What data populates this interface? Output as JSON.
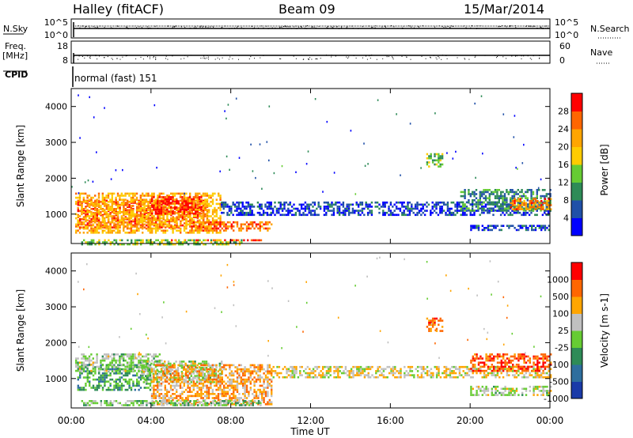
{
  "header": {
    "station": "Halley (fitACF)",
    "beam": "Beam 09",
    "date": "15/Mar/2014"
  },
  "nsky_panel": {
    "left_label": "N.Sky",
    "right_label": "N.Search",
    "left_ticks": [
      "10^5",
      "10^0"
    ],
    "right_ticks": [
      "10^5",
      "10^0"
    ]
  },
  "freq_panel": {
    "left_label_line1": "Freq.",
    "left_label_line2": "[MHz]",
    "right_label": "Nave",
    "left_ticks": [
      "18",
      "8"
    ],
    "right_ticks": [
      "60",
      "0"
    ]
  },
  "cpid": {
    "label": "CPID",
    "value": "normal (fast) 151"
  },
  "x_axis": {
    "label": "Time UT",
    "ticks": [
      "00:00",
      "04:00",
      "08:00",
      "12:00",
      "16:00",
      "20:00",
      "00:00"
    ]
  },
  "chart_data": [
    {
      "type": "heatmap",
      "name": "power",
      "ylabel": "Slant Range [km]",
      "yticks": [
        "1000",
        "2000",
        "3000",
        "4000"
      ],
      "ylim": [
        180,
        4500
      ],
      "xlim_hours": [
        0,
        24
      ],
      "colorbar": {
        "label": "Power [dB]",
        "ticks": [
          "4",
          "8",
          "12",
          "16",
          "20",
          "24",
          "28"
        ],
        "colors": [
          "#0000ff",
          "#2050a8",
          "#2e8b57",
          "#66cc33",
          "#ffcc00",
          "#ffa500",
          "#ff6600",
          "#ff0000"
        ],
        "range": [
          0,
          32
        ]
      },
      "regions": [
        {
          "t": [
            0.3,
            6.8
          ],
          "r": [
            650,
            1400
          ],
          "level": 0.85
        },
        {
          "t": [
            0.2,
            7.5
          ],
          "r": [
            500,
            1600
          ],
          "level": 0.65
        },
        {
          "t": [
            4.0,
            6.5
          ],
          "r": [
            1000,
            1500
          ],
          "level": 0.95
        },
        {
          "t": [
            5.0,
            9.5
          ],
          "r": [
            250,
            300
          ],
          "level": 0.95
        },
        {
          "t": [
            0.5,
            8.5
          ],
          "r": [
            180,
            300
          ],
          "level": 0.45
        },
        {
          "t": [
            6.0,
            10.0
          ],
          "r": [
            550,
            800
          ],
          "level": 0.8
        },
        {
          "t": [
            7.5,
            24.0
          ],
          "r": [
            1000,
            1350
          ],
          "level": 0.15
        },
        {
          "t": [
            17.8,
            18.6
          ],
          "r": [
            2300,
            2700
          ],
          "level": 0.4
        },
        {
          "t": [
            19.5,
            24.0
          ],
          "r": [
            1100,
            1700
          ],
          "level": 0.3
        },
        {
          "t": [
            22.0,
            24.0
          ],
          "r": [
            1150,
            1450
          ],
          "level": 0.75
        },
        {
          "t": [
            20.0,
            24.0
          ],
          "r": [
            550,
            700
          ],
          "level": 0.15
        }
      ]
    },
    {
      "type": "heatmap",
      "name": "velocity",
      "ylabel": "Slant Range [km]",
      "yticks": [
        "1000",
        "2000",
        "3000",
        "4000"
      ],
      "ylim": [
        180,
        4500
      ],
      "xlim_hours": [
        0,
        24
      ],
      "colorbar": {
        "label": "Velocity [m s-1]",
        "ticks": [
          "1000",
          "500",
          "100",
          "25",
          "-25",
          "-100",
          "-500",
          "-1000"
        ],
        "colors": [
          "#1a3aa8",
          "#2e6e9e",
          "#2e8b57",
          "#66cc33",
          "#c0c0c0",
          "#ffa500",
          "#ff6600",
          "#ff0000"
        ]
      },
      "regions": [
        {
          "t": [
            0.3,
            4.0
          ],
          "r": [
            700,
            1400
          ],
          "level": 0.35
        },
        {
          "t": [
            0.2,
            4.5
          ],
          "r": [
            1200,
            1700
          ],
          "level": 0.5
        },
        {
          "t": [
            3.5,
            7.5
          ],
          "r": [
            900,
            1500
          ],
          "level": 0.5
        },
        {
          "t": [
            4.0,
            10.0
          ],
          "r": [
            300,
            1400
          ],
          "level": 0.7
        },
        {
          "t": [
            0.5,
            9.5
          ],
          "r": [
            250,
            400
          ],
          "level": 0.45
        },
        {
          "t": [
            10.0,
            24.0
          ],
          "r": [
            1050,
            1350
          ],
          "level": 0.6
        },
        {
          "t": [
            17.8,
            18.6
          ],
          "r": [
            2300,
            2700
          ],
          "level": 0.8
        },
        {
          "t": [
            20.0,
            24.0
          ],
          "r": [
            1200,
            1700
          ],
          "level": 0.85
        },
        {
          "t": [
            20.0,
            24.0
          ],
          "r": [
            550,
            800
          ],
          "level": 0.5
        }
      ]
    }
  ]
}
